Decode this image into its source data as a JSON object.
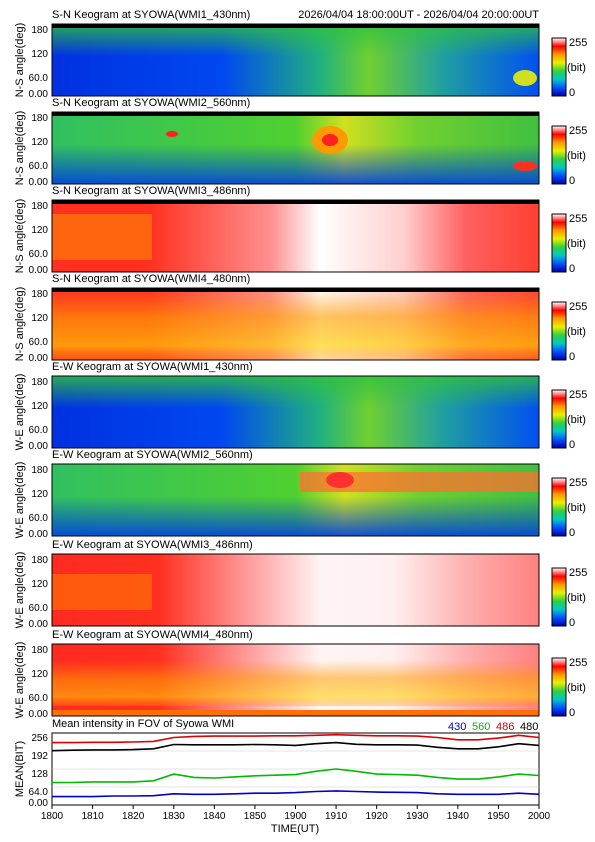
{
  "header": {
    "time_range": "2026/04/04 18:00:00UT - 2026/04/04 20:00:00UT"
  },
  "colorbar": {
    "max_label": "255",
    "unit_label": "(bit)",
    "min_label": "0",
    "stops": [
      "#0000a8",
      "#0050ff",
      "#00c8c8",
      "#30d040",
      "#e8f000",
      "#ff9a00",
      "#ff0000",
      "#ffffff"
    ]
  },
  "x_axis": {
    "title": "TIME(UT)",
    "ticks": [
      "1800",
      "1810",
      "1820",
      "1830",
      "1840",
      "1850",
      "1900",
      "1910",
      "1920",
      "1930",
      "1940",
      "1950",
      "2000"
    ]
  },
  "keogram_panels": [
    {
      "title": "S-N Keogram at SYOWA(WMI1_430nm)",
      "ylabel": "N-S angle(deg)",
      "yticks": [
        "180",
        "120",
        "60.0",
        "0.00"
      ]
    },
    {
      "title": "S-N Keogram at SYOWA(WMI2_560nm)",
      "ylabel": "N-S angle(deg)",
      "yticks": [
        "180",
        "120",
        "60.0",
        "0.00"
      ]
    },
    {
      "title": "S-N Keogram at SYOWA(WMI3_486nm)",
      "ylabel": "N-S angle(deg)",
      "yticks": [
        "180",
        "120",
        "60.0",
        "0.00"
      ]
    },
    {
      "title": "S-N Keogram at SYOWA(WMI4_480nm)",
      "ylabel": "N-S angle(deg)",
      "yticks": [
        "180",
        "120",
        "60.0",
        "0.00"
      ]
    },
    {
      "title": "E-W Keogram at SYOWA(WMI1_430nm)",
      "ylabel": "W-E angle(deg)",
      "yticks": [
        "180",
        "120",
        "60.0",
        "0.00"
      ]
    },
    {
      "title": "E-W Keogram at SYOWA(WMI2_560nm)",
      "ylabel": "W-E angle(deg)",
      "yticks": [
        "180",
        "120",
        "60.0",
        "0.00"
      ]
    },
    {
      "title": "E-W Keogram at SYOWA(WMI3_486nm)",
      "ylabel": "W-E angle(deg)",
      "yticks": [
        "180",
        "120",
        "60.0",
        "0.00"
      ]
    },
    {
      "title": "E-W Keogram at SYOWA(WMI4_480nm)",
      "ylabel": "W-E angle(deg)",
      "yticks": [
        "180",
        "120",
        "60.0",
        "0.00"
      ]
    }
  ],
  "mean_panel": {
    "title": "Mean intensity in FOV of Syowa WMI",
    "ylabel": "MEAN(BIT)",
    "yticks": [
      "256",
      "192",
      "128",
      "64.0",
      "0.00"
    ],
    "legend": [
      {
        "label": "430",
        "color": "#0000cc"
      },
      {
        "label": "560",
        "color": "#00bb00"
      },
      {
        "label": "486",
        "color": "#dd0000"
      },
      {
        "label": "480",
        "color": "#000000"
      }
    ]
  },
  "chart_data": {
    "type": "line",
    "title": "Mean intensity in FOV of Syowa WMI",
    "xlabel": "TIME(UT)",
    "ylabel": "MEAN(BIT)",
    "x": [
      "1800",
      "1805",
      "1810",
      "1815",
      "1820",
      "1825",
      "1830",
      "1835",
      "1840",
      "1845",
      "1850",
      "1855",
      "1900",
      "1905",
      "1910",
      "1915",
      "1920",
      "1925",
      "1930",
      "1935",
      "1940",
      "1945",
      "1950",
      "1955",
      "2000"
    ],
    "xlim": [
      "1800",
      "2000"
    ],
    "ylim": [
      0,
      256
    ],
    "series": [
      {
        "name": "430",
        "color": "#0000cc",
        "values": [
          30,
          30,
          30,
          32,
          32,
          33,
          40,
          38,
          38,
          40,
          42,
          42,
          44,
          48,
          50,
          48,
          46,
          45,
          44,
          40,
          38,
          38,
          38,
          42,
          38
        ]
      },
      {
        "name": "560",
        "color": "#00bb00",
        "values": [
          80,
          80,
          82,
          82,
          82,
          86,
          110,
          98,
          96,
          100,
          104,
          106,
          108,
          120,
          128,
          120,
          110,
          108,
          106,
          98,
          92,
          92,
          100,
          110,
          105
        ]
      },
      {
        "name": "486",
        "color": "#dd0000",
        "values": [
          222,
          222,
          223,
          223,
          224,
          226,
          240,
          244,
          245,
          245,
          245,
          246,
          246,
          248,
          250,
          248,
          246,
          246,
          245,
          240,
          232,
          232,
          238,
          248,
          240
        ]
      },
      {
        "name": "480",
        "color": "#000000",
        "values": [
          193,
          195,
          196,
          196,
          197,
          200,
          215,
          214,
          214,
          214,
          215,
          214,
          212,
          218,
          222,
          216,
          214,
          214,
          213,
          205,
          200,
          200,
          207,
          218,
          212
        ]
      }
    ]
  }
}
